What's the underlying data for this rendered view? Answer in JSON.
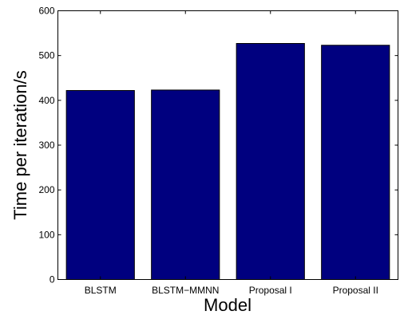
{
  "chart_data": {
    "type": "bar",
    "title": "",
    "xlabel": "Model",
    "ylabel": "Time per iteration/s",
    "categories": [
      "BLSTM",
      "BLSTM−MMNN",
      "Proposal I",
      "Proposal II"
    ],
    "values": [
      422,
      423,
      527,
      523
    ],
    "ylim": [
      0,
      600
    ],
    "yticks": [
      0,
      100,
      200,
      300,
      400,
      500,
      600
    ],
    "bar_color": "#00007f",
    "grid": false,
    "legend": "none"
  }
}
